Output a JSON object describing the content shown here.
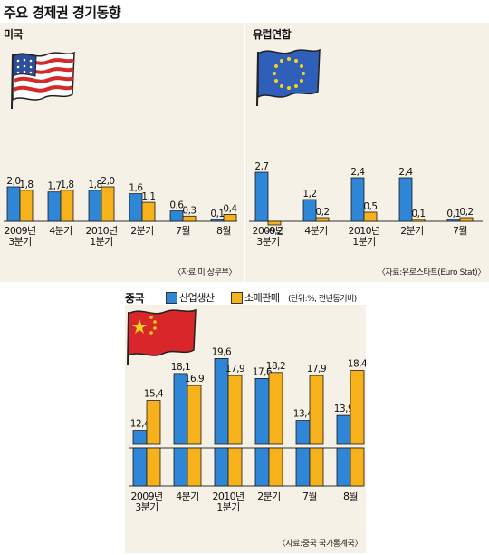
{
  "title": "주요 경제권 경기동향",
  "colors": {
    "production": "#2f86d6",
    "retail": "#f7b21b",
    "panel_bg": "#f6f1e6",
    "bar_outline": "#1a1a1a"
  },
  "panels": {
    "us": {
      "label": "미국",
      "source": "〈자료:미 상무부〉",
      "flag_icon": "us-flag-icon"
    },
    "eu": {
      "label": "유럽연합",
      "source": "〈자료:유로스타트(Euro Stat)〉",
      "flag_icon": "eu-flag-icon"
    },
    "cn": {
      "label": "중국",
      "source": "〈자료:중국 국가통계국〉",
      "flag_icon": "china-flag-icon"
    }
  },
  "legend": {
    "production": "산업생산",
    "retail": "소매판매",
    "unit": "(단위:%, 전년동기비)"
  },
  "chart_data": [
    {
      "type": "bar",
      "region": "미국",
      "categories": [
        "2009년\n3분기",
        "4분기",
        "2010년\n1분기",
        "2분기",
        "7월",
        "8월"
      ],
      "series": [
        {
          "name": "산업생산",
          "values": [
            2.0,
            1.7,
            1.8,
            1.6,
            0.6,
            0.1
          ],
          "labels": [
            "2,0",
            "1,7",
            "1,8",
            "1,6",
            "0,6",
            "0,1"
          ]
        },
        {
          "name": "소매판매",
          "values": [
            1.8,
            1.8,
            2.0,
            1.1,
            0.3,
            0.4
          ],
          "labels": [
            "1,8",
            "1,8",
            "2,0",
            "1,1",
            "0,3",
            "0,4"
          ]
        }
      ]
    },
    {
      "type": "bar",
      "region": "유럽연합",
      "categories": [
        "2009년\n3분기",
        "4분기",
        "2010년\n1분기",
        "2분기",
        "7월"
      ],
      "series": [
        {
          "name": "산업생산",
          "values": [
            2.7,
            1.2,
            2.4,
            2.4,
            0.1
          ],
          "labels": [
            "2,7",
            "1,2",
            "2,4",
            "2,4",
            "0,1"
          ]
        },
        {
          "name": "소매판매",
          "values": [
            -0.2,
            0.2,
            0.5,
            0.1,
            0.2
          ],
          "labels": [
            "-0,2",
            "0,2",
            "0,5",
            "0,1",
            "0,2"
          ]
        }
      ]
    },
    {
      "type": "bar",
      "region": "중국",
      "categories": [
        "2009년\n3분기",
        "4분기",
        "2010년\n1분기",
        "2분기",
        "7월",
        "8월"
      ],
      "axis_break": true,
      "series": [
        {
          "name": "산업생산",
          "values": [
            12.4,
            18.1,
            19.6,
            17.6,
            13.4,
            13.9
          ],
          "labels": [
            "12,4",
            "18,1",
            "19,6",
            "17,6",
            "13,4",
            "13,9"
          ]
        },
        {
          "name": "소매판매",
          "values": [
            15.4,
            16.9,
            17.9,
            18.2,
            17.9,
            18.4
          ],
          "labels": [
            "15,4",
            "16,9",
            "17,9",
            "18,2",
            "17,9",
            "18,4"
          ]
        }
      ]
    }
  ]
}
